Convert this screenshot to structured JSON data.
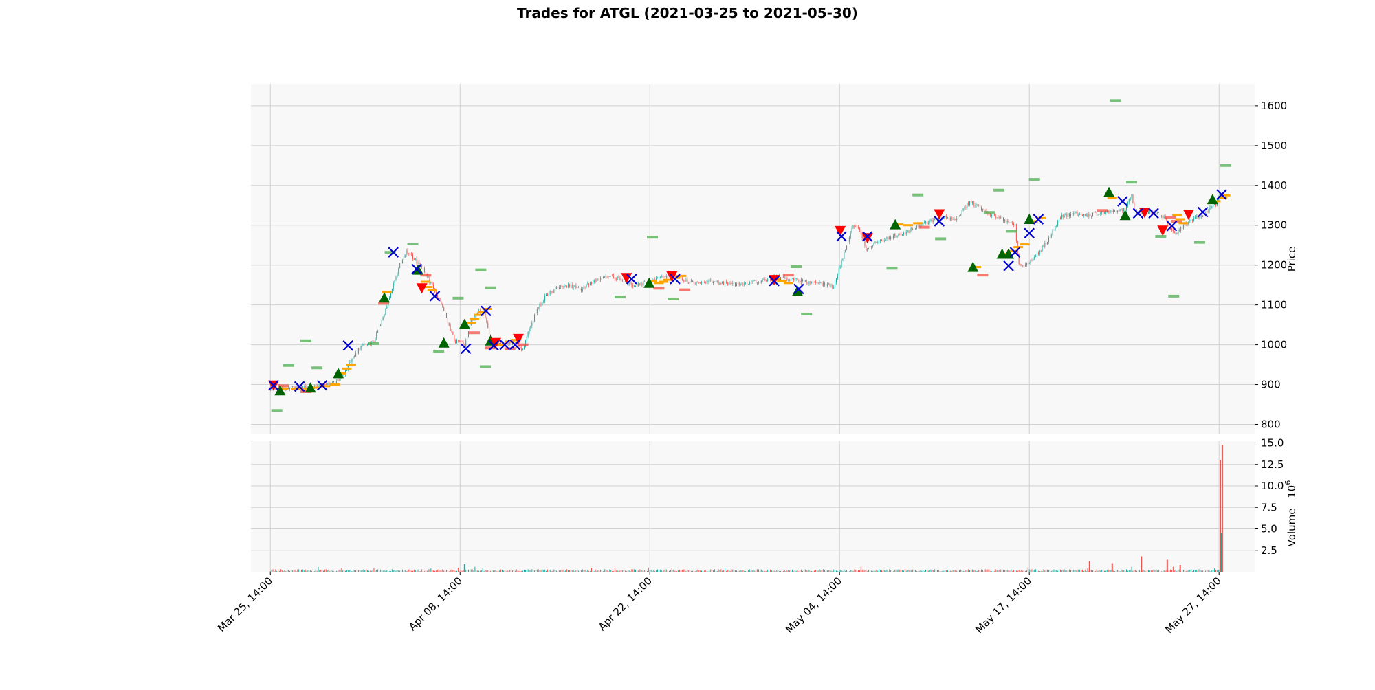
{
  "chart_data": {
    "type": "candlestick",
    "title": "Trades for ATGL (2021-03-25 to 2021-05-30)",
    "price_panel": {
      "ylabel": "Price",
      "ylim": [
        775,
        1655
      ],
      "yticks": [
        800,
        900,
        1000,
        1100,
        1200,
        1300,
        1400,
        1500,
        1600
      ],
      "grid": true,
      "y_axis_side": "right"
    },
    "volume_panel": {
      "ylabel": "Volume",
      "ylabel_exponent": "10",
      "ylabel_exponent_power": "6",
      "ylim": [
        0,
        15.2
      ],
      "yticks": [
        2.5,
        5.0,
        7.5,
        10.0,
        12.5,
        15.0
      ],
      "ytick_labels": [
        "2.5",
        "5.0",
        "7.5",
        "10.0",
        "12.5",
        "15.0"
      ],
      "grid": true
    },
    "x_axis": {
      "range": [
        -30,
        1520
      ],
      "ticks": [
        0,
        293,
        586,
        879,
        1172,
        1465
      ],
      "tick_labels": [
        "Mar 25, 14:00",
        "Apr 08, 14:00",
        "Apr 22, 14:00",
        "May 04, 14:00",
        "May 17, 14:00",
        "May 27, 14:00"
      ]
    },
    "colors": {
      "up": "#26a69a",
      "down": "#ef5350",
      "buy": "#006400",
      "sell": "#ff0000",
      "exit": "#0000cd",
      "entry_level": "#ffa500",
      "take_profit": "#4caf50",
      "stop_loss": "#f44336",
      "panel_bg": "#f8f8f8",
      "grid": "#d0d0d0"
    },
    "price_path": [
      [
        0,
        893
      ],
      [
        20,
        890
      ],
      [
        40,
        895
      ],
      [
        60,
        892
      ],
      [
        80,
        897
      ],
      [
        100,
        905
      ],
      [
        115,
        930
      ],
      [
        125,
        960
      ],
      [
        140,
        995
      ],
      [
        160,
        1010
      ],
      [
        170,
        1050
      ],
      [
        180,
        1100
      ],
      [
        190,
        1150
      ],
      [
        200,
        1200
      ],
      [
        210,
        1235
      ],
      [
        225,
        1210
      ],
      [
        240,
        1180
      ],
      [
        255,
        1130
      ],
      [
        265,
        1100
      ],
      [
        275,
        1050
      ],
      [
        285,
        1010
      ],
      [
        300,
        1000
      ],
      [
        310,
        1060
      ],
      [
        320,
        1080
      ],
      [
        330,
        1085
      ],
      [
        340,
        1010
      ],
      [
        360,
        1005
      ],
      [
        380,
        1000
      ],
      [
        390,
        990
      ],
      [
        400,
        1040
      ],
      [
        410,
        1080
      ],
      [
        420,
        1110
      ],
      [
        430,
        1130
      ],
      [
        440,
        1140
      ],
      [
        460,
        1150
      ],
      [
        480,
        1140
      ],
      [
        500,
        1160
      ],
      [
        520,
        1175
      ],
      [
        540,
        1165
      ],
      [
        560,
        1150
      ],
      [
        580,
        1155
      ],
      [
        600,
        1165
      ],
      [
        620,
        1175
      ],
      [
        640,
        1160
      ],
      [
        660,
        1155
      ],
      [
        680,
        1158
      ],
      [
        700,
        1155
      ],
      [
        720,
        1150
      ],
      [
        740,
        1155
      ],
      [
        760,
        1160
      ],
      [
        780,
        1170
      ],
      [
        800,
        1165
      ],
      [
        820,
        1160
      ],
      [
        840,
        1155
      ],
      [
        860,
        1150
      ],
      [
        870,
        1145
      ],
      [
        880,
        1200
      ],
      [
        890,
        1250
      ],
      [
        900,
        1300
      ],
      [
        910,
        1290
      ],
      [
        920,
        1240
      ],
      [
        940,
        1260
      ],
      [
        960,
        1270
      ],
      [
        980,
        1280
      ],
      [
        1000,
        1300
      ],
      [
        1020,
        1310
      ],
      [
        1040,
        1320
      ],
      [
        1060,
        1315
      ],
      [
        1080,
        1360
      ],
      [
        1100,
        1340
      ],
      [
        1120,
        1320
      ],
      [
        1140,
        1310
      ],
      [
        1150,
        1300
      ],
      [
        1155,
        1205
      ],
      [
        1165,
        1200
      ],
      [
        1180,
        1220
      ],
      [
        1190,
        1240
      ],
      [
        1200,
        1260
      ],
      [
        1210,
        1290
      ],
      [
        1220,
        1320
      ],
      [
        1240,
        1330
      ],
      [
        1260,
        1325
      ],
      [
        1280,
        1330
      ],
      [
        1300,
        1335
      ],
      [
        1320,
        1340
      ],
      [
        1330,
        1375
      ],
      [
        1335,
        1330
      ],
      [
        1350,
        1335
      ],
      [
        1370,
        1330
      ],
      [
        1380,
        1320
      ],
      [
        1390,
        1290
      ],
      [
        1400,
        1280
      ],
      [
        1410,
        1300
      ],
      [
        1420,
        1310
      ],
      [
        1430,
        1320
      ],
      [
        1440,
        1325
      ],
      [
        1450,
        1340
      ],
      [
        1460,
        1355
      ],
      [
        1465,
        1370
      ],
      [
        1470,
        1375
      ]
    ],
    "volume_spikes": [
      {
        "x": 300,
        "v": 0.9,
        "up": true
      },
      {
        "x": 1300,
        "v": 1.0,
        "up": false
      },
      {
        "x": 1265,
        "v": 1.2,
        "up": false
      },
      {
        "x": 1345,
        "v": 1.8,
        "up": false
      },
      {
        "x": 1385,
        "v": 1.4,
        "up": false
      },
      {
        "x": 1405,
        "v": 0.8,
        "up": false
      },
      {
        "x": 1467,
        "v": 13.0,
        "up": false
      },
      {
        "x": 1470,
        "v": 14.8,
        "up": false
      },
      {
        "x": 1468,
        "v": 4.5,
        "up": true
      }
    ],
    "buy_markers": [
      [
        15,
        885
      ],
      [
        62,
        892
      ],
      [
        105,
        928
      ],
      [
        176,
        1118
      ],
      [
        228,
        1188
      ],
      [
        268,
        1005
      ],
      [
        300,
        1052
      ],
      [
        340,
        1010
      ],
      [
        585,
        1155
      ],
      [
        814,
        1135
      ],
      [
        965,
        1302
      ],
      [
        1085,
        1195
      ],
      [
        1130,
        1228
      ],
      [
        1140,
        1228
      ],
      [
        1172,
        1315
      ],
      [
        1295,
        1383
      ],
      [
        1320,
        1325
      ],
      [
        1455,
        1365
      ]
    ],
    "sell_markers": [
      [
        5,
        898
      ],
      [
        234,
        1142
      ],
      [
        348,
        1005
      ],
      [
        383,
        1015
      ],
      [
        550,
        1168
      ],
      [
        620,
        1172
      ],
      [
        778,
        1163
      ],
      [
        880,
        1286
      ],
      [
        922,
        1268
      ],
      [
        1033,
        1328
      ],
      [
        1350,
        1332
      ],
      [
        1378,
        1287
      ],
      [
        1418,
        1327
      ]
    ],
    "exit_markers": [
      [
        5,
        898
      ],
      [
        45,
        895
      ],
      [
        80,
        898
      ],
      [
        120,
        998
      ],
      [
        190,
        1232
      ],
      [
        226,
        1190
      ],
      [
        254,
        1122
      ],
      [
        302,
        990
      ],
      [
        333,
        1085
      ],
      [
        345,
        998
      ],
      [
        362,
        1000
      ],
      [
        378,
        1000
      ],
      [
        558,
        1165
      ],
      [
        625,
        1165
      ],
      [
        778,
        1160
      ],
      [
        816,
        1140
      ],
      [
        882,
        1272
      ],
      [
        922,
        1272
      ],
      [
        1033,
        1310
      ],
      [
        1140,
        1198
      ],
      [
        1150,
        1232
      ],
      [
        1172,
        1280
      ],
      [
        1186,
        1315
      ],
      [
        1316,
        1360
      ],
      [
        1340,
        1330
      ],
      [
        1364,
        1330
      ],
      [
        1392,
        1298
      ],
      [
        1440,
        1333
      ],
      [
        1469,
        1377
      ]
    ],
    "entry_levels": [
      [
        20,
        890
      ],
      [
        40,
        888
      ],
      [
        55,
        890
      ],
      [
        70,
        892
      ],
      [
        85,
        896
      ],
      [
        100,
        900
      ],
      [
        110,
        928
      ],
      [
        118,
        940
      ],
      [
        125,
        950
      ],
      [
        180,
        1132
      ],
      [
        240,
        1158
      ],
      [
        243,
        1145
      ],
      [
        250,
        1138
      ],
      [
        310,
        1055
      ],
      [
        315,
        1065
      ],
      [
        322,
        1075
      ],
      [
        328,
        1083
      ],
      [
        335,
        1090
      ],
      [
        345,
        1010
      ],
      [
        355,
        1000
      ],
      [
        370,
        1008
      ],
      [
        380,
        1012
      ],
      [
        590,
        1160
      ],
      [
        600,
        1155
      ],
      [
        607,
        1158
      ],
      [
        614,
        1163
      ],
      [
        625,
        1168
      ],
      [
        635,
        1173
      ],
      [
        780,
        1165
      ],
      [
        790,
        1160
      ],
      [
        800,
        1155
      ],
      [
        970,
        1302
      ],
      [
        985,
        1300
      ],
      [
        1000,
        1305
      ],
      [
        1090,
        1195
      ],
      [
        1135,
        1228
      ],
      [
        1145,
        1235
      ],
      [
        1155,
        1245
      ],
      [
        1165,
        1252
      ],
      [
        1178,
        1310
      ],
      [
        1190,
        1318
      ],
      [
        1300,
        1368
      ],
      [
        1400,
        1325
      ],
      [
        1405,
        1315
      ],
      [
        1410,
        1305
      ],
      [
        1460,
        1360
      ],
      [
        1470,
        1368
      ],
      [
        1475,
        1375
      ]
    ],
    "take_profits": [
      [
        10,
        835
      ],
      [
        28,
        948
      ],
      [
        55,
        1010
      ],
      [
        72,
        942
      ],
      [
        160,
        1003
      ],
      [
        185,
        1232
      ],
      [
        220,
        1253
      ],
      [
        260,
        983
      ],
      [
        290,
        1117
      ],
      [
        325,
        1188
      ],
      [
        340,
        1143
      ],
      [
        332,
        945
      ],
      [
        540,
        1120
      ],
      [
        590,
        1270
      ],
      [
        622,
        1115
      ],
      [
        828,
        1077
      ],
      [
        812,
        1196
      ],
      [
        960,
        1192
      ],
      [
        1000,
        1376
      ],
      [
        1035,
        1266
      ],
      [
        1110,
        1332
      ],
      [
        1125,
        1388
      ],
      [
        1145,
        1285
      ],
      [
        1180,
        1415
      ],
      [
        1305,
        1613
      ],
      [
        1330,
        1408
      ],
      [
        1375,
        1272
      ],
      [
        1395,
        1122
      ],
      [
        1435,
        1257
      ],
      [
        1475,
        1450
      ]
    ],
    "stop_losses": [
      [
        20,
        897
      ],
      [
        55,
        882
      ],
      [
        175,
        1104
      ],
      [
        240,
        1175
      ],
      [
        315,
        1030
      ],
      [
        340,
        992
      ],
      [
        370,
        990
      ],
      [
        390,
        1000
      ],
      [
        600,
        1142
      ],
      [
        640,
        1138
      ],
      [
        800,
        1175
      ],
      [
        1010,
        1295
      ],
      [
        1100,
        1175
      ],
      [
        1285,
        1337
      ],
      [
        1390,
        1320
      ],
      [
        1400,
        1310
      ]
    ]
  }
}
